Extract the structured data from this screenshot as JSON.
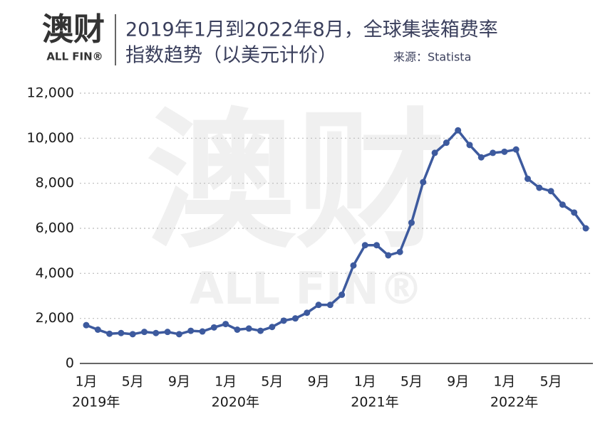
{
  "logo": {
    "mark": "澳财",
    "text": "ALL FIN®"
  },
  "watermark": {
    "mark": "澳财",
    "text": "ALL FIN®"
  },
  "chart_data": {
    "type": "line",
    "title_lines": [
      "2019年1月到2022年8月，全球集装箱费率",
      "指数趋势（以美元计价）"
    ],
    "source": "来源：Statista",
    "categories": [
      "1月",
      null,
      null,
      null,
      "5月",
      null,
      null,
      null,
      "9月",
      null,
      null,
      null,
      "1月",
      null,
      null,
      null,
      "5月",
      null,
      null,
      null,
      "9月",
      null,
      null,
      null,
      "1月",
      null,
      null,
      null,
      "5月",
      null,
      null,
      null,
      "9月",
      null,
      null,
      null,
      "1月",
      null,
      null,
      null,
      "5月",
      null,
      null,
      null
    ],
    "year_labels": [
      "2019年",
      null,
      null,
      null,
      null,
      null,
      null,
      null,
      null,
      null,
      null,
      null,
      "2020年",
      null,
      null,
      null,
      null,
      null,
      null,
      null,
      null,
      null,
      null,
      null,
      "2021年",
      null,
      null,
      null,
      null,
      null,
      null,
      null,
      null,
      null,
      null,
      null,
      "2022年",
      null,
      null,
      null,
      null,
      null,
      null,
      null
    ],
    "series": [
      {
        "name": "全球集装箱费率指数",
        "color": "#3d5a9e",
        "values": [
          1700,
          1500,
          1320,
          1350,
          1300,
          1400,
          1350,
          1400,
          1300,
          1450,
          1420,
          1600,
          1750,
          1500,
          1550,
          1450,
          1620,
          1900,
          2000,
          2250,
          2600,
          2600,
          3050,
          4350,
          5250,
          5250,
          4800,
          4950,
          6250,
          8050,
          9350,
          9800,
          10350,
          9700,
          9150,
          9350,
          9400,
          9500,
          8200,
          7800,
          7650,
          7050,
          6700,
          6000
        ]
      }
    ],
    "ylim": [
      0,
      12000
    ],
    "yticks": [
      0,
      {
        "value": 2000,
        "label": "2,000"
      },
      {
        "value": 4000,
        "label": "4,000"
      },
      {
        "value": 6000,
        "label": "6,000"
      },
      {
        "value": 8000,
        "label": "8,000"
      },
      {
        "value": 10000,
        "label": "10,000"
      },
      {
        "value": 12000,
        "label": "12,000"
      }
    ],
    "grid": true
  }
}
